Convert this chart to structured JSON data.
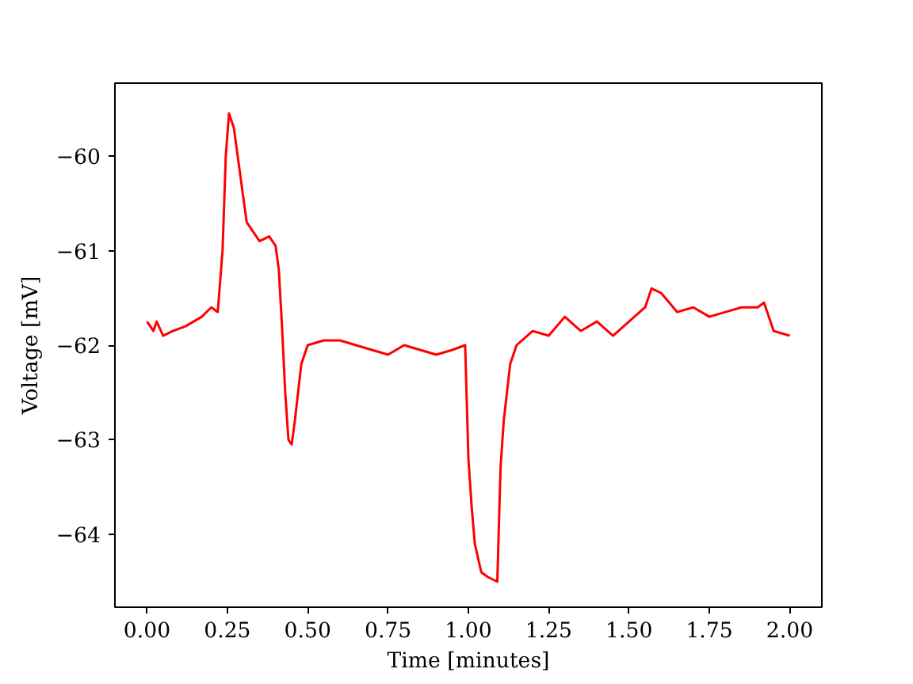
{
  "chart_data": {
    "type": "line",
    "xlabel": "Time [minutes]",
    "ylabel": "Voltage [mV]",
    "x": [
      0,
      0.02,
      0.03,
      0.05,
      0.08,
      0.12,
      0.17,
      0.2,
      0.22,
      0.235,
      0.245,
      0.255,
      0.27,
      0.29,
      0.31,
      0.33,
      0.35,
      0.38,
      0.4,
      0.41,
      0.42,
      0.43,
      0.44,
      0.45,
      0.46,
      0.48,
      0.5,
      0.55,
      0.6,
      0.65,
      0.7,
      0.75,
      0.8,
      0.85,
      0.9,
      0.95,
      0.99,
      1.0,
      1.01,
      1.02,
      1.04,
      1.06,
      1.09,
      1.1,
      1.11,
      1.13,
      1.15,
      1.2,
      1.25,
      1.3,
      1.35,
      1.4,
      1.45,
      1.5,
      1.55,
      1.57,
      1.6,
      1.65,
      1.7,
      1.75,
      1.8,
      1.85,
      1.9,
      1.92,
      1.95,
      2.0
    ],
    "series": [
      {
        "color": "#ff0000",
        "values": [
          -61.75,
          -61.85,
          -61.75,
          -61.9,
          -61.85,
          -61.8,
          -61.7,
          -61.6,
          -61.65,
          -61.0,
          -60.0,
          -59.55,
          -59.7,
          -60.2,
          -60.7,
          -60.8,
          -60.9,
          -60.85,
          -60.95,
          -61.2,
          -61.8,
          -62.5,
          -63.0,
          -63.05,
          -62.8,
          -62.2,
          -62.0,
          -61.95,
          -61.95,
          -62.0,
          -62.05,
          -62.1,
          -62.0,
          -62.05,
          -62.1,
          -62.05,
          -62.0,
          -63.2,
          -63.7,
          -64.1,
          -64.4,
          -64.45,
          -64.5,
          -63.3,
          -62.8,
          -62.2,
          -62.0,
          -61.85,
          -61.9,
          -61.7,
          -61.85,
          -61.75,
          -61.9,
          -61.75,
          -61.6,
          -61.4,
          -61.45,
          -61.65,
          -61.6,
          -61.7,
          -61.65,
          -61.6,
          -61.6,
          -61.55,
          -61.85,
          -61.9
        ]
      }
    ],
    "xlim": [
      -0.1,
      2.1
    ],
    "ylim": [
      -64.77,
      -59.23
    ],
    "xticks": [
      {
        "value": 0,
        "label": "0.00"
      },
      {
        "value": 0.25,
        "label": "0.25"
      },
      {
        "value": 0.5,
        "label": "0.50"
      },
      {
        "value": 0.75,
        "label": "0.75"
      },
      {
        "value": 1,
        "label": "1.00"
      },
      {
        "value": 1.25,
        "label": "1.25"
      },
      {
        "value": 1.5,
        "label": "1.50"
      },
      {
        "value": 1.75,
        "label": "1.75"
      },
      {
        "value": 2,
        "label": "2.00"
      }
    ],
    "yticks": [
      {
        "value": -64,
        "label": "−64"
      },
      {
        "value": -63,
        "label": "−63"
      },
      {
        "value": -62,
        "label": "−62"
      },
      {
        "value": -61,
        "label": "−61"
      },
      {
        "value": -60,
        "label": "−60"
      }
    ]
  }
}
